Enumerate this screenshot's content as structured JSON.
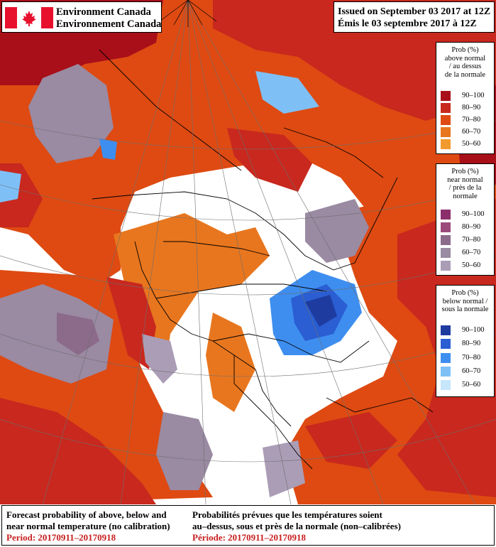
{
  "header": {
    "agency_en": "Environment Canada",
    "agency_fr": "Environnement Canada",
    "issued_en": "Issued on September 03 2017 at 12Z",
    "issued_fr": "Émis le 03 septembre 2017 à 12Z"
  },
  "legends": {
    "above": {
      "title": [
        "Prob (%)",
        "above normal",
        "/ au dessus",
        "de la normale"
      ],
      "rows": [
        {
          "label": "90–100",
          "color": "#a80f19"
        },
        {
          "label": "80–90",
          "color": "#c8281e"
        },
        {
          "label": "70–80",
          "color": "#de4a12"
        },
        {
          "label": "60–70",
          "color": "#e8761e"
        },
        {
          "label": "50–60",
          "color": "#f19a2e"
        }
      ]
    },
    "near": {
      "title": [
        "Prob (%)",
        "near normal",
        "/ près de la",
        "normale"
      ],
      "rows": [
        {
          "label": "90–100",
          "color": "#8c2e6c"
        },
        {
          "label": "80–90",
          "color": "#9c4a7c"
        },
        {
          "label": "70–80",
          "color": "#8c6a8a"
        },
        {
          "label": "60–70",
          "color": "#9a8aa2"
        },
        {
          "label": "50–60",
          "color": "#ab9db6"
        }
      ]
    },
    "below": {
      "title": [
        "Prob (%)",
        "below normal /",
        "sous la normale"
      ],
      "rows": [
        {
          "label": "90–100",
          "color": "#1e3ca0"
        },
        {
          "label": "80–90",
          "color": "#2a5ed2"
        },
        {
          "label": "70–80",
          "color": "#3e8ef0"
        },
        {
          "label": "60–70",
          "color": "#7ec0f6"
        },
        {
          "label": "50–60",
          "color": "#c6e6fc"
        }
      ]
    }
  },
  "footer": {
    "en": [
      "Forecast probability of above, below and",
      "near normal temperature (no calibration)",
      "Period: 20170911–20170918"
    ],
    "fr": [
      "Probabilités prévues que les températures soient",
      "au–dessus, sous et près de la normale (non–calibrées)",
      "Période: 20170911–20170918"
    ]
  },
  "colors": {
    "above_normal": "#c8281e",
    "near_normal": "#9a8aa2",
    "below_normal": "#2a5ed2",
    "flag_red": "#e8112d",
    "period_text": "#c81e1e"
  }
}
